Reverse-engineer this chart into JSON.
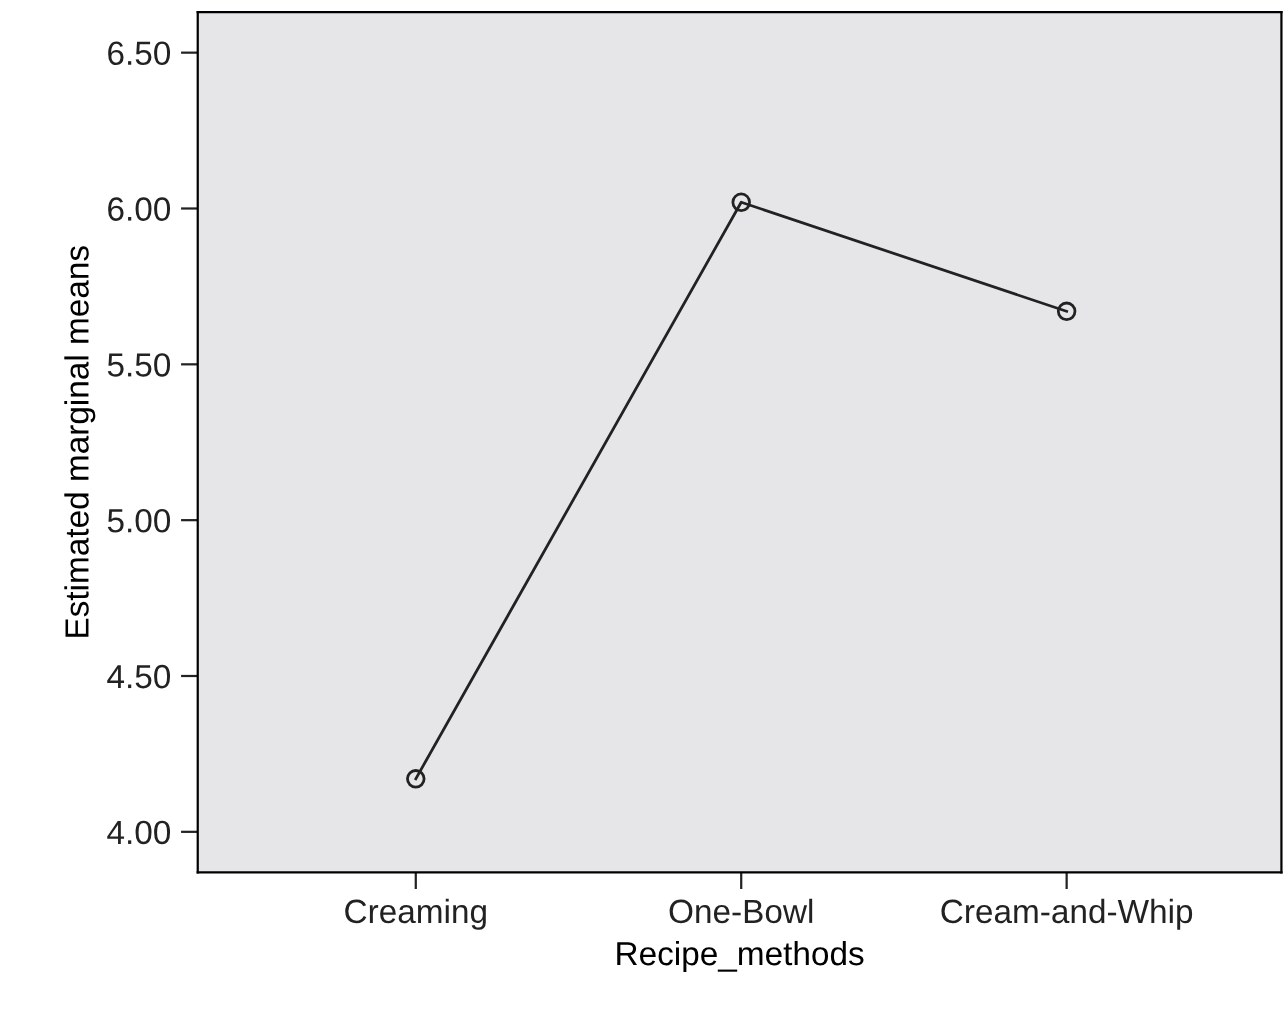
{
  "chart_data": {
    "type": "line",
    "xlabel": "Recipe_methods",
    "ylabel": "Estimated marginal means",
    "categories": [
      "Creaming",
      "One-Bowl",
      "Cream-and-Whip"
    ],
    "series": [
      {
        "color": "#222222",
        "values": [
          4.17,
          6.02,
          5.67
        ]
      }
    ],
    "ylim": [
      3.87,
      6.63
    ],
    "yticks": [
      {
        "value": 4.0,
        "label": "4.00"
      },
      {
        "value": 4.5,
        "label": "4.50"
      },
      {
        "value": 5.0,
        "label": "5.00"
      },
      {
        "value": 5.5,
        "label": "5.50"
      },
      {
        "value": 6.0,
        "label": "6.00"
      },
      {
        "value": 6.5,
        "label": "6.50"
      }
    ],
    "marker": "circle",
    "line_style": "solid",
    "grid": false,
    "legend": false
  }
}
